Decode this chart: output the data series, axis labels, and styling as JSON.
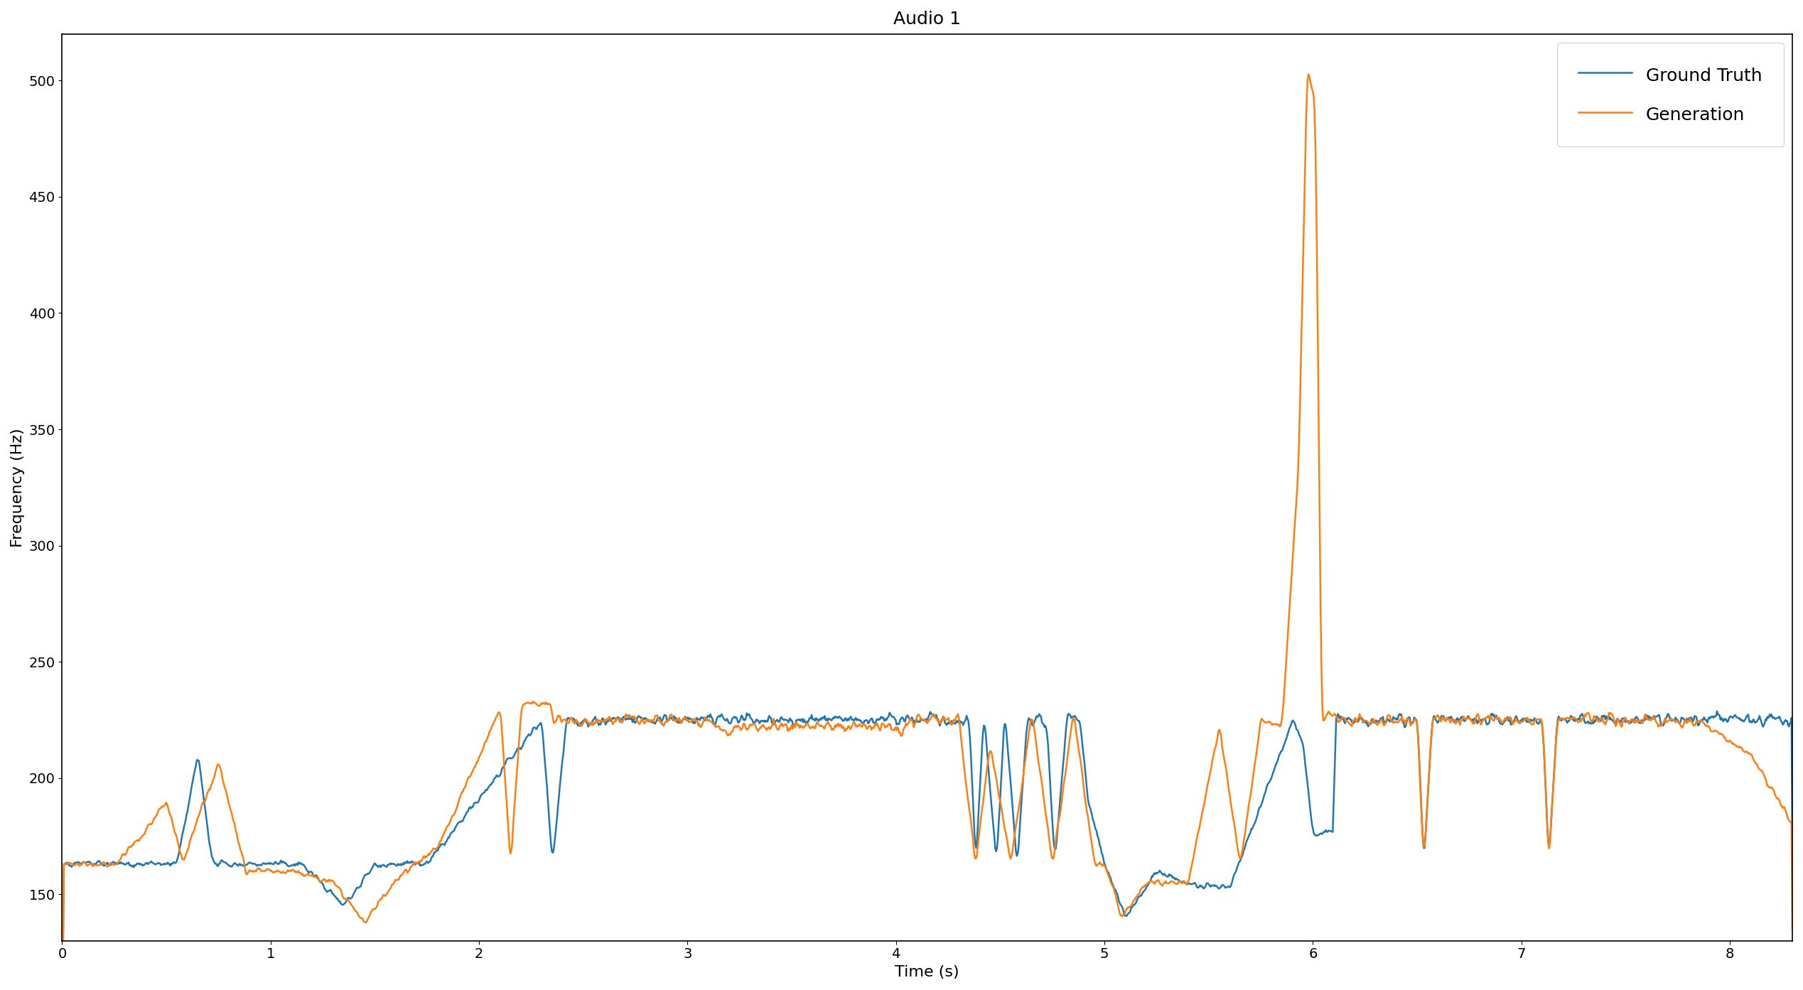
{
  "title": "Audio 1",
  "xlabel": "Time (s)",
  "ylabel": "Frequency (Hz)",
  "xlim": [
    0,
    8.3
  ],
  "ylim": [
    130,
    520
  ],
  "yticks": [
    150,
    200,
    250,
    300,
    350,
    400,
    450,
    500
  ],
  "xticks": [
    0,
    1,
    2,
    3,
    4,
    5,
    6,
    7,
    8
  ],
  "gt_color": "#1f77b4",
  "gen_color": "#ff7f0e",
  "gt_label": "Ground Truth",
  "gen_label": "Generation",
  "linewidth": 1.8,
  "title_fontsize": 18,
  "label_fontsize": 16,
  "tick_fontsize": 14,
  "legend_fontsize": 18
}
